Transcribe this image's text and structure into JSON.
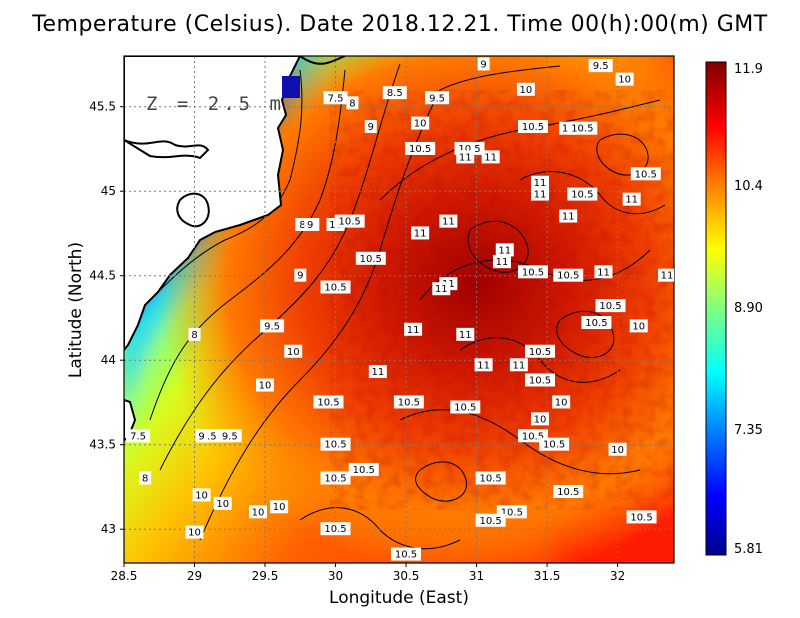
{
  "title": "Temperature (Celsius). Date 2018.12.21. Time 00(h):00(m) GMT",
  "depth_label": "Z = 2.5 m",
  "axes": {
    "xlabel": "Longitude (East)",
    "ylabel": "Latitude (North)",
    "xlim": [
      28.5,
      32.4
    ],
    "ylim": [
      42.8,
      45.8
    ],
    "xticks": [
      "28.5",
      "29",
      "29.5",
      "30",
      "30.5",
      "31",
      "31.5",
      "32"
    ],
    "yticks": [
      "43",
      "43.5",
      "44",
      "44.5",
      "45",
      "45.5"
    ]
  },
  "colorbar": {
    "labels": [
      "11.9",
      "10.4",
      "8.90",
      "7.35",
      "5.81"
    ],
    "min": 5.81,
    "max": 11.9,
    "colormap": [
      "#00008f",
      "#0000ff",
      "#0080ff",
      "#00ffff",
      "#80ff80",
      "#ffff00",
      "#ff8000",
      "#ff0000",
      "#800000"
    ]
  },
  "chart_data": {
    "type": "heatmap",
    "title": "Temperature (Celsius). Date 2018.12.21. Time 00(h):00(m) GMT",
    "xlabel": "Longitude (East)",
    "ylabel": "Latitude (North)",
    "value_range": [
      5.81,
      11.9
    ],
    "contour_labels": [
      {
        "lon": 29.1,
        "lat": 43.55,
        "text": "8.5"
      },
      {
        "lon": 28.6,
        "lat": 43.55,
        "text": "7.5"
      },
      {
        "lon": 28.65,
        "lat": 43.3,
        "text": "8"
      },
      {
        "lon": 29.05,
        "lat": 43.55,
        "text": "9"
      },
      {
        "lon": 29.25,
        "lat": 43.55,
        "text": "9.5"
      },
      {
        "lon": 29.05,
        "lat": 43.2,
        "text": "10"
      },
      {
        "lon": 29.2,
        "lat": 43.15,
        "text": "10"
      },
      {
        "lon": 29.45,
        "lat": 43.1,
        "text": "10"
      },
      {
        "lon": 29.6,
        "lat": 43.13,
        "text": "10"
      },
      {
        "lon": 29.0,
        "lat": 42.98,
        "text": "10"
      },
      {
        "lon": 29.0,
        "lat": 44.15,
        "text": "8"
      },
      {
        "lon": 29.55,
        "lat": 44.2,
        "text": "9.5"
      },
      {
        "lon": 29.75,
        "lat": 44.5,
        "text": "9"
      },
      {
        "lon": 29.7,
        "lat": 44.05,
        "text": "10"
      },
      {
        "lon": 29.5,
        "lat": 43.85,
        "text": "10"
      },
      {
        "lon": 29.95,
        "lat": 43.75,
        "text": "10.5"
      },
      {
        "lon": 30.0,
        "lat": 43.5,
        "text": "10.5"
      },
      {
        "lon": 30.0,
        "lat": 43.3,
        "text": "10.5"
      },
      {
        "lon": 30.2,
        "lat": 43.35,
        "text": "10.5"
      },
      {
        "lon": 30.0,
        "lat": 43.0,
        "text": "10.5"
      },
      {
        "lon": 30.5,
        "lat": 42.85,
        "text": "10.5"
      },
      {
        "lon": 30.0,
        "lat": 44.43,
        "text": "10.5"
      },
      {
        "lon": 30.25,
        "lat": 44.6,
        "text": "10.5"
      },
      {
        "lon": 29.8,
        "lat": 44.8,
        "text": "8.5"
      },
      {
        "lon": 29.82,
        "lat": 44.8,
        "text": "9"
      },
      {
        "lon": 30.0,
        "lat": 44.8,
        "text": "10"
      },
      {
        "lon": 30.1,
        "lat": 44.82,
        "text": "10.5"
      },
      {
        "lon": 30.0,
        "lat": 45.55,
        "text": "7.5"
      },
      {
        "lon": 30.12,
        "lat": 45.52,
        "text": "8"
      },
      {
        "lon": 30.25,
        "lat": 45.38,
        "text": "9"
      },
      {
        "lon": 30.42,
        "lat": 45.58,
        "text": "8.5"
      },
      {
        "lon": 30.72,
        "lat": 45.55,
        "text": "9.5"
      },
      {
        "lon": 30.6,
        "lat": 45.4,
        "text": "10"
      },
      {
        "lon": 30.6,
        "lat": 45.25,
        "text": "10.5"
      },
      {
        "lon": 31.05,
        "lat": 45.75,
        "text": "9"
      },
      {
        "lon": 31.35,
        "lat": 45.6,
        "text": "10"
      },
      {
        "lon": 31.4,
        "lat": 45.38,
        "text": "10.5"
      },
      {
        "lon": 30.95,
        "lat": 45.25,
        "text": "10.5"
      },
      {
        "lon": 30.92,
        "lat": 45.2,
        "text": "11"
      },
      {
        "lon": 31.1,
        "lat": 45.2,
        "text": "11"
      },
      {
        "lon": 31.65,
        "lat": 45.37,
        "text": "11"
      },
      {
        "lon": 31.75,
        "lat": 45.37,
        "text": "10.5"
      },
      {
        "lon": 31.88,
        "lat": 45.74,
        "text": "9.5"
      },
      {
        "lon": 32.05,
        "lat": 45.66,
        "text": "10"
      },
      {
        "lon": 31.45,
        "lat": 45.05,
        "text": "11"
      },
      {
        "lon": 31.45,
        "lat": 44.98,
        "text": "11"
      },
      {
        "lon": 31.75,
        "lat": 44.98,
        "text": "10.5"
      },
      {
        "lon": 32.2,
        "lat": 45.1,
        "text": "10.5"
      },
      {
        "lon": 32.1,
        "lat": 44.95,
        "text": "11"
      },
      {
        "lon": 31.65,
        "lat": 44.85,
        "text": "11"
      },
      {
        "lon": 30.8,
        "lat": 44.82,
        "text": "11"
      },
      {
        "lon": 30.6,
        "lat": 44.75,
        "text": "11"
      },
      {
        "lon": 31.2,
        "lat": 44.65,
        "text": "11"
      },
      {
        "lon": 31.18,
        "lat": 44.58,
        "text": "11"
      },
      {
        "lon": 31.4,
        "lat": 44.52,
        "text": "10.5"
      },
      {
        "lon": 31.65,
        "lat": 44.5,
        "text": "10.5"
      },
      {
        "lon": 31.9,
        "lat": 44.52,
        "text": "11"
      },
      {
        "lon": 32.35,
        "lat": 44.5,
        "text": "11"
      },
      {
        "lon": 30.8,
        "lat": 44.45,
        "text": "11"
      },
      {
        "lon": 30.75,
        "lat": 44.42,
        "text": "11"
      },
      {
        "lon": 30.55,
        "lat": 44.18,
        "text": "11"
      },
      {
        "lon": 30.92,
        "lat": 44.15,
        "text": "11"
      },
      {
        "lon": 30.3,
        "lat": 43.93,
        "text": "11"
      },
      {
        "lon": 31.05,
        "lat": 43.97,
        "text": "11"
      },
      {
        "lon": 31.3,
        "lat": 43.97,
        "text": "11"
      },
      {
        "lon": 31.45,
        "lat": 44.05,
        "text": "10.5"
      },
      {
        "lon": 31.95,
        "lat": 44.32,
        "text": "10.5"
      },
      {
        "lon": 31.85,
        "lat": 44.22,
        "text": "10.5"
      },
      {
        "lon": 32.15,
        "lat": 44.2,
        "text": "10"
      },
      {
        "lon": 31.45,
        "lat": 43.88,
        "text": "10.5"
      },
      {
        "lon": 31.6,
        "lat": 43.75,
        "text": "10"
      },
      {
        "lon": 30.52,
        "lat": 43.75,
        "text": "10.5"
      },
      {
        "lon": 30.92,
        "lat": 43.72,
        "text": "10.5"
      },
      {
        "lon": 31.45,
        "lat": 43.65,
        "text": "10"
      },
      {
        "lon": 31.4,
        "lat": 43.55,
        "text": "10.5"
      },
      {
        "lon": 31.55,
        "lat": 43.5,
        "text": "10.5"
      },
      {
        "lon": 32.0,
        "lat": 43.47,
        "text": "10"
      },
      {
        "lon": 31.1,
        "lat": 43.3,
        "text": "10.5"
      },
      {
        "lon": 31.65,
        "lat": 43.22,
        "text": "10.5"
      },
      {
        "lon": 31.25,
        "lat": 43.1,
        "text": "10.5"
      },
      {
        "lon": 31.1,
        "lat": 43.05,
        "text": "10.5"
      },
      {
        "lon": 32.17,
        "lat": 43.07,
        "text": "10.5"
      }
    ]
  }
}
